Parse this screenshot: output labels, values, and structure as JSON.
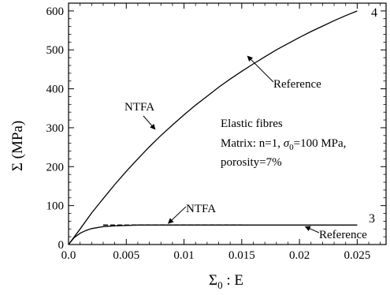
{
  "chart_data": {
    "type": "line",
    "xlabel_main": "Σ",
    "xlabel_sub": "0",
    "xlabel_rest": " : E",
    "ylabel": "Σ  (MPa)",
    "xlim": [
      0,
      0.0275
    ],
    "ylim": [
      0,
      620
    ],
    "x_ticks": [
      0,
      0.005,
      0.01,
      0.015,
      0.02,
      0.025
    ],
    "x_tick_labels": [
      "0.0",
      "0.005",
      "0.01",
      "0.015",
      "0.02",
      "0.025"
    ],
    "y_ticks": [
      0,
      100,
      200,
      300,
      400,
      500,
      600
    ],
    "y_tick_labels": [
      "0",
      "100",
      "200",
      "300",
      "400",
      "500",
      "600"
    ],
    "grid": false,
    "series": [
      {
        "name": "4",
        "x": [
          0,
          0.001,
          0.002,
          0.003,
          0.004,
          0.005,
          0.006,
          0.007,
          0.008,
          0.009,
          0.01,
          0.011,
          0.012,
          0.013,
          0.014,
          0.015,
          0.016,
          0.017,
          0.018,
          0.019,
          0.02,
          0.021,
          0.022,
          0.023,
          0.024,
          0.025
        ],
        "y": [
          0,
          40,
          81,
          118,
          154,
          188,
          220,
          251,
          280,
          307,
          333,
          358,
          381,
          404,
          425,
          445,
          464,
          482,
          500,
          516,
          532,
          547,
          561,
          575,
          588,
          600
        ]
      },
      {
        "name": "3",
        "x": [
          0,
          0.0005,
          0.001,
          0.0015,
          0.002,
          0.003,
          0.004,
          0.005,
          0.006,
          0.008,
          0.01,
          0.015,
          0.02,
          0.025
        ],
        "y": [
          0,
          18,
          29,
          36,
          41,
          46,
          48,
          49,
          50,
          50,
          50,
          50,
          50,
          50
        ]
      }
    ],
    "annotations": {
      "ntfa_upper": "NTFA",
      "reference_upper": "Reference",
      "ntfa_lower": "NTFA",
      "reference_lower": "Reference",
      "info_line1": "Elastic fibres",
      "info_line2_prefix": "Matrix: n=1, ",
      "info_sigma": "σ",
      "info_sigma_sub": "0",
      "info_line2_suffix": "=100 MPa,",
      "info_line3": "porosity=7%"
    }
  }
}
